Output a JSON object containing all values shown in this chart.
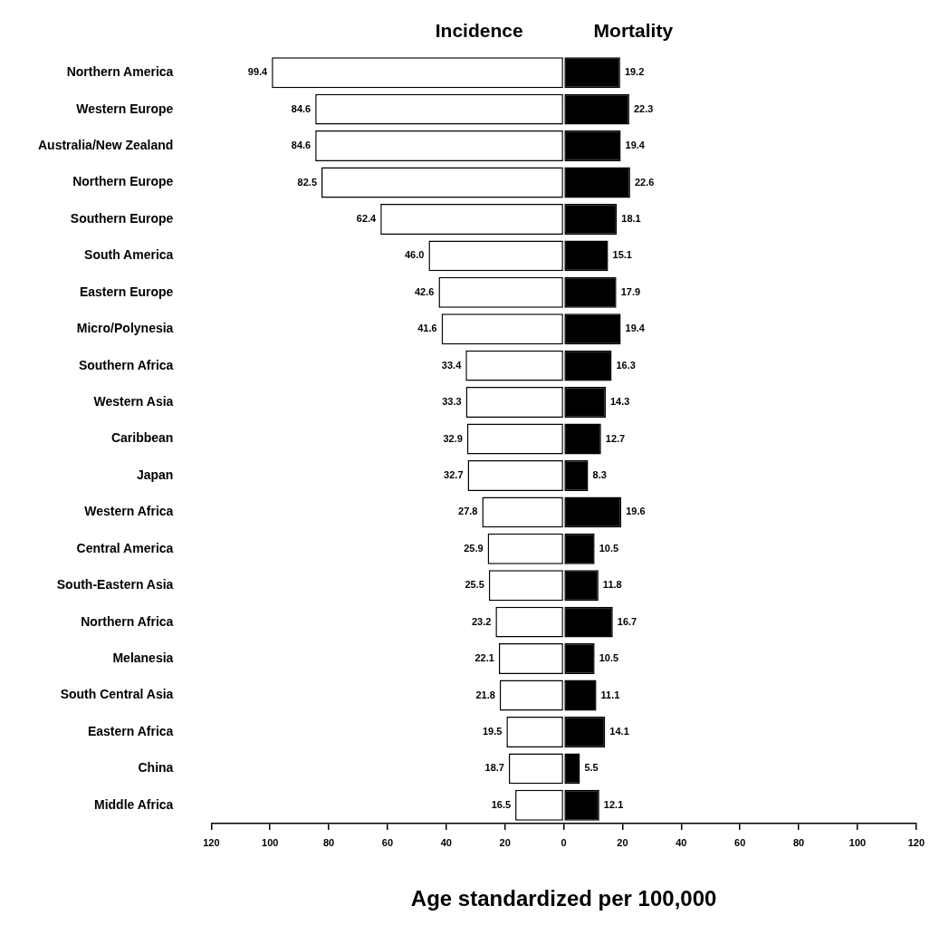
{
  "chart_data": {
    "type": "bar",
    "orientation": "horizontal",
    "xlabel": "Age standardized per 100,000",
    "categories": [
      "Northern America",
      "Western Europe",
      "Australia/New Zealand",
      "Northern Europe",
      "Southern Europe",
      "South America",
      "Eastern Europe",
      "Micro/Polynesia",
      "Southern Africa",
      "Western Asia",
      "Caribbean",
      "Japan",
      "Western Africa",
      "Central America",
      "South-Eastern Asia",
      "Northern Africa",
      "Melanesia",
      "South Central Asia",
      "Eastern Africa",
      "China",
      "Middle Africa"
    ],
    "series": [
      {
        "name": "Incidence",
        "color": "#ffffff",
        "values": [
          99.4,
          84.6,
          84.6,
          82.5,
          62.4,
          46.0,
          42.6,
          41.6,
          33.4,
          33.3,
          32.9,
          32.7,
          27.8,
          25.9,
          25.5,
          23.2,
          22.1,
          21.8,
          19.5,
          18.7,
          16.5
        ],
        "base": [
          -99.4,
          -84.6,
          -84.6,
          -82.5,
          -62.4,
          -46.0,
          -42.6,
          -41.6,
          -33.4,
          -33.3,
          -32.9,
          -32.7,
          -27.8,
          -25.9,
          -25.5,
          -23.2,
          -22.1,
          -21.8,
          -19.5,
          -18.7,
          -16.5
        ],
        "value_labels": [
          "99.4",
          "84.6",
          "84.6",
          "82.5",
          "62.4",
          "46.0",
          "42.6",
          "41.6",
          "33.4",
          "33.3",
          "32.9",
          "32.7",
          "27.8",
          "25.9",
          "25.5",
          "23.2",
          "22.1",
          "21.8",
          "19.5",
          "18.7",
          "16.5"
        ]
      },
      {
        "name": "Mortality",
        "color": "#000000",
        "values": [
          19.2,
          22.3,
          19.4,
          22.6,
          18.1,
          15.1,
          17.9,
          19.4,
          16.3,
          14.3,
          12.7,
          8.3,
          19.6,
          10.5,
          11.8,
          16.7,
          10.5,
          11.1,
          14.1,
          5.5,
          12.1
        ],
        "value_labels": [
          "19.2",
          "22.3",
          "19.4",
          "22.6",
          "18.1",
          "15.1",
          "17.9",
          "19.4",
          "16.3",
          "14.3",
          "12.7",
          "8.3",
          "19.6",
          "10.5",
          "11.8",
          "16.7",
          "10.5",
          "11.1",
          "14.1",
          "5.5",
          "12.1"
        ]
      }
    ],
    "xlim": [
      -120,
      120
    ],
    "xticks": [
      {
        "value": -120,
        "label": "120"
      },
      {
        "value": -100,
        "label": "100"
      },
      {
        "value": -80,
        "label": "80"
      },
      {
        "value": -60,
        "label": "60"
      },
      {
        "value": -40,
        "label": "40"
      },
      {
        "value": -20,
        "label": "20"
      },
      0,
      20,
      40,
      60,
      80,
      100,
      120
    ],
    "grid": false,
    "legend": false
  }
}
